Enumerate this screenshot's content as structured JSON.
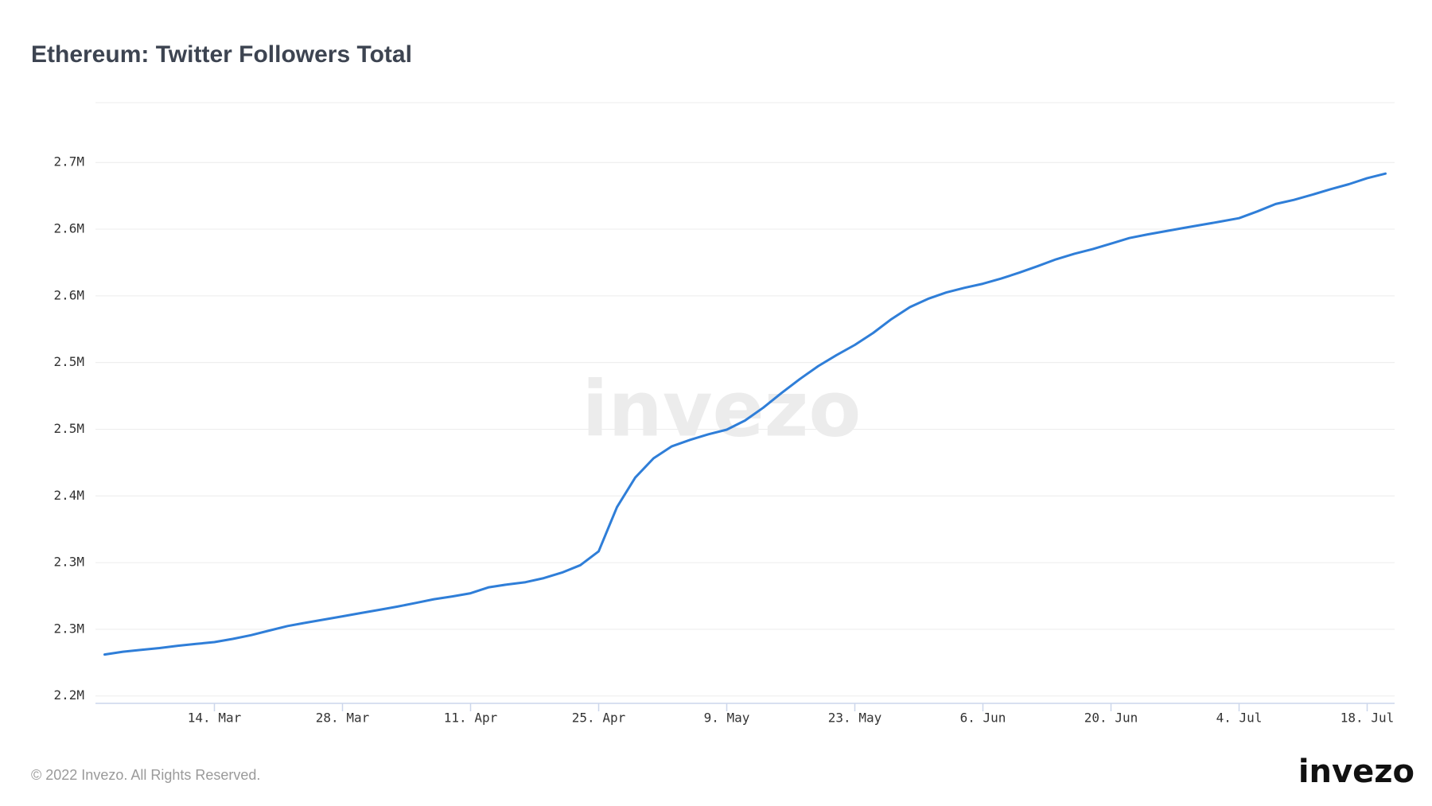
{
  "chart_data": {
    "type": "line",
    "title": "Ethereum: Twitter Followers Total",
    "watermark": "invezo",
    "color": "#2f7ed8",
    "grid": true,
    "categories": [
      null,
      null,
      null,
      null,
      null,
      null,
      "14. Mar",
      null,
      null,
      null,
      null,
      null,
      null,
      "28. Mar",
      null,
      null,
      null,
      null,
      null,
      null,
      "11. Apr",
      null,
      null,
      null,
      null,
      null,
      null,
      "25. Apr",
      null,
      null,
      null,
      null,
      null,
      null,
      "9. May",
      null,
      null,
      null,
      null,
      null,
      null,
      "23. May",
      null,
      null,
      null,
      null,
      null,
      null,
      "6. Jun",
      null,
      null,
      null,
      null,
      null,
      null,
      "20. Jun",
      null,
      null,
      null,
      null,
      null,
      null,
      "4. Jul",
      null,
      null,
      null,
      null,
      null,
      null,
      "18. Jul",
      null
    ],
    "values": [
      2238900,
      2241500,
      2243200,
      2244900,
      2247100,
      2248800,
      2250500,
      2253500,
      2257000,
      2261300,
      2265600,
      2268700,
      2271700,
      2274700,
      2277700,
      2280700,
      2283800,
      2287200,
      2290700,
      2293300,
      2296300,
      2301900,
      2304500,
      2306700,
      2310500,
      2315700,
      2322600,
      2335600,
      2377000,
      2404700,
      2422800,
      2434000,
      2440100,
      2445300,
      2449600,
      2458200,
      2470300,
      2484100,
      2497100,
      2509200,
      2519500,
      2529000,
      2540200,
      2553200,
      2564400,
      2572200,
      2578200,
      2582600,
      2586400,
      2591200,
      2596800,
      2602900,
      2609300,
      2614500,
      2618800,
      2624000,
      2629200,
      2632600,
      2635700,
      2638700,
      2641700,
      2644700,
      2647800,
      2654200,
      2661100,
      2665000,
      2669800,
      2675000,
      2679700,
      2685300,
      2689600
    ],
    "ylim": [
      2193100,
      2756100
    ],
    "yticks": [
      {
        "value": 2200000,
        "label": "2.2M"
      },
      {
        "value": 2262500,
        "label": "2.3M"
      },
      {
        "value": 2325000,
        "label": "2.3M"
      },
      {
        "value": 2387500,
        "label": "2.4M"
      },
      {
        "value": 2450000,
        "label": "2.5M"
      },
      {
        "value": 2512500,
        "label": "2.5M"
      },
      {
        "value": 2575000,
        "label": "2.6M"
      },
      {
        "value": 2637500,
        "label": "2.6M"
      },
      {
        "value": 2700000,
        "label": "2.7M"
      }
    ]
  },
  "footer": {
    "copyright": "© 2022 Invezo. All Rights Reserved.",
    "logo": "invezo"
  }
}
